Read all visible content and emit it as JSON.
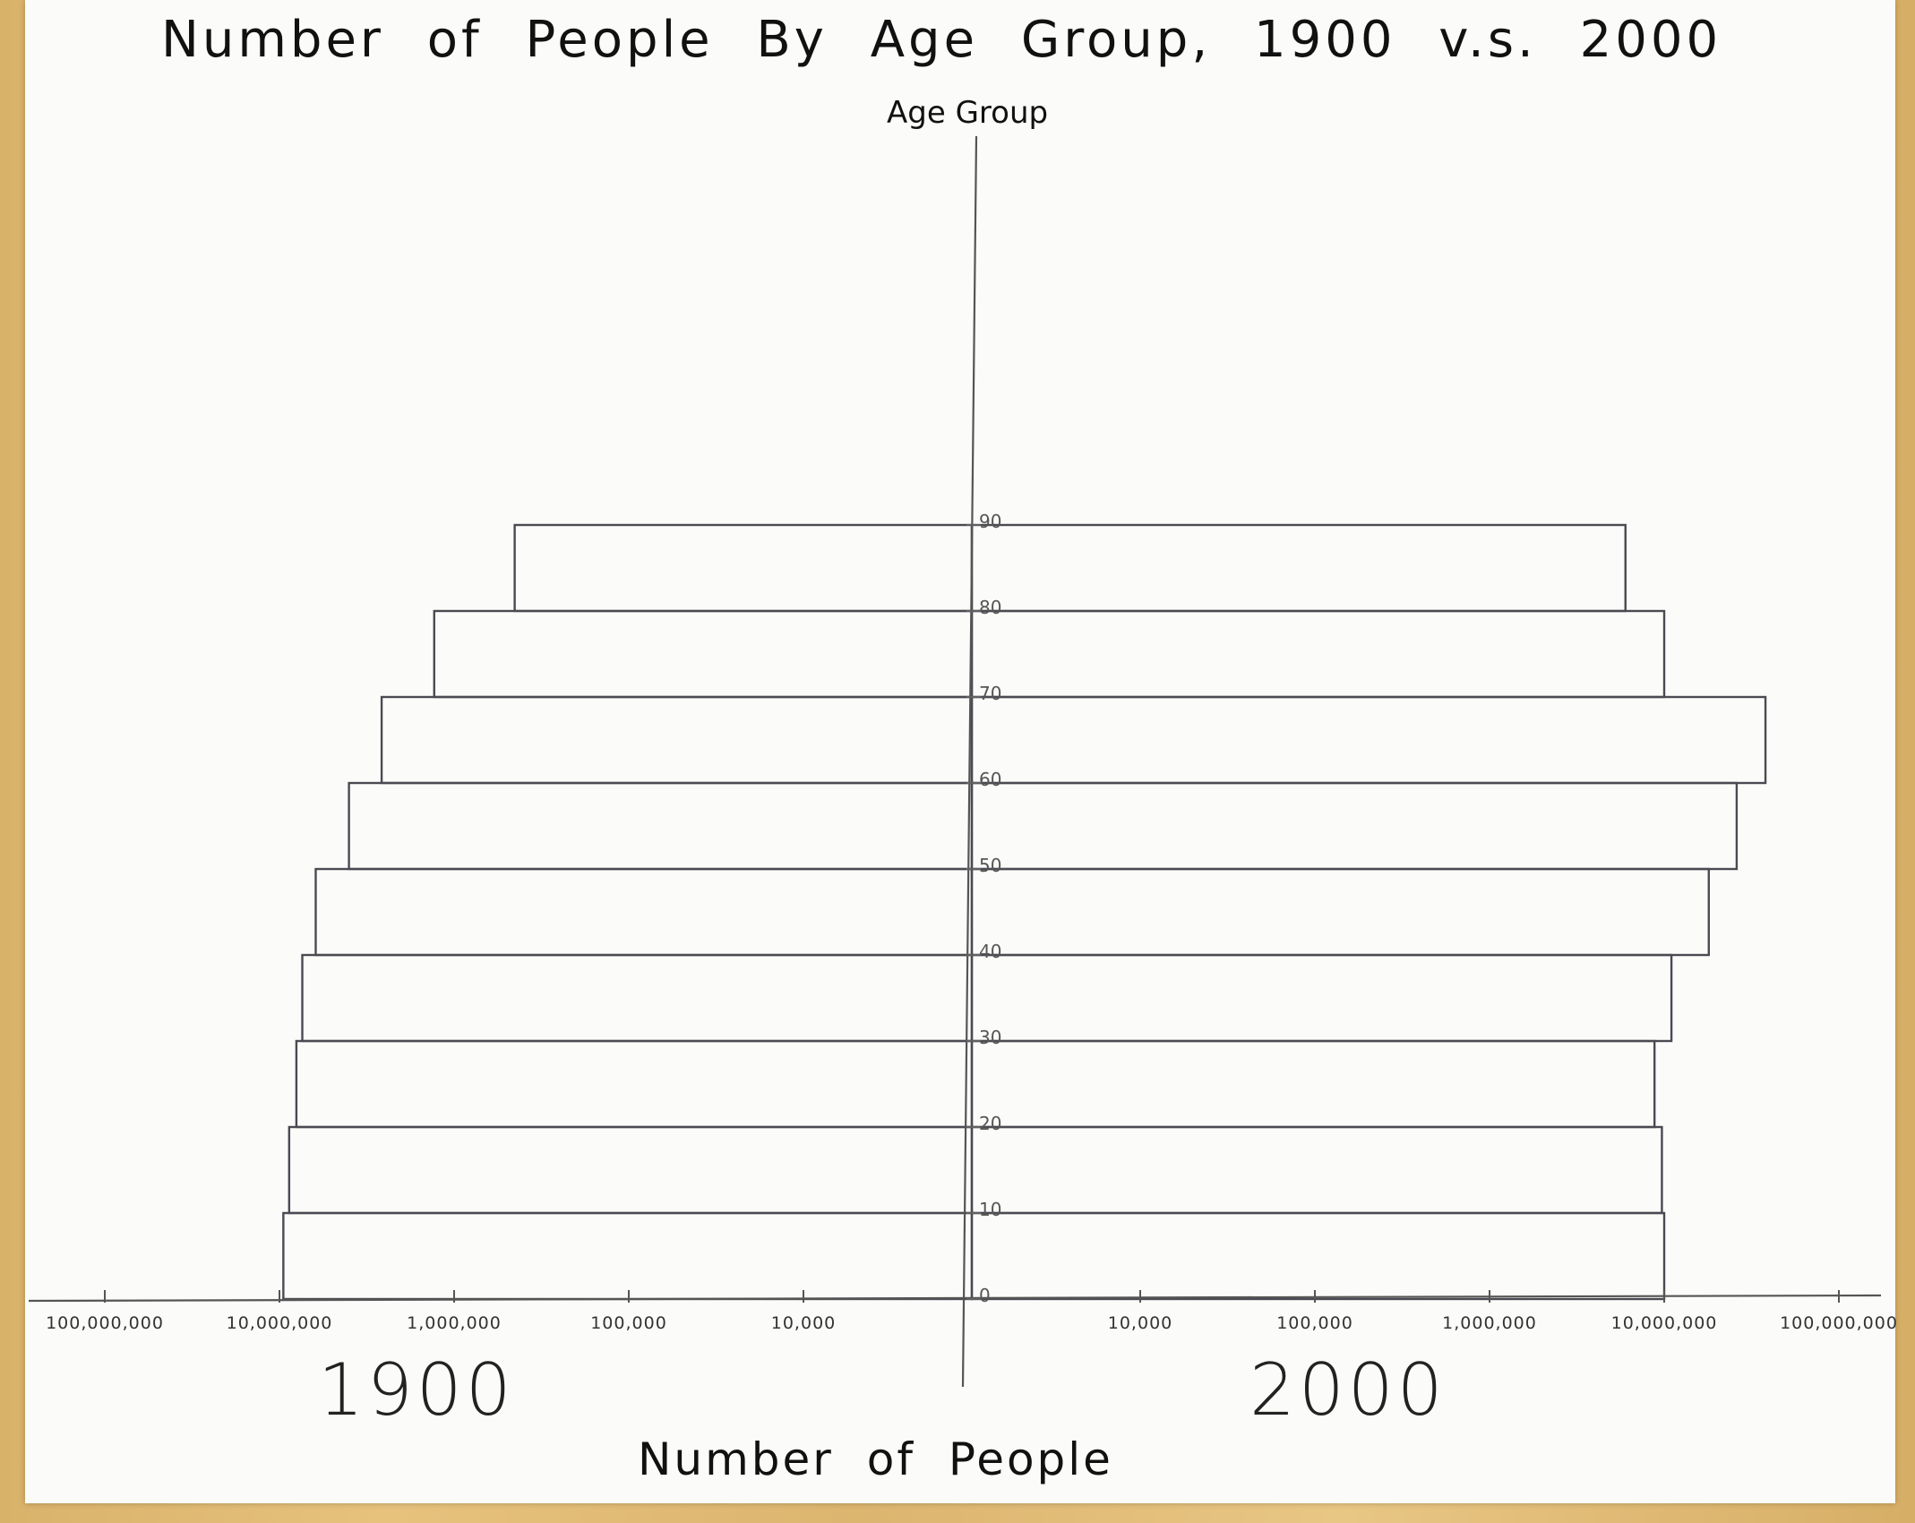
{
  "chart_data": {
    "type": "bar",
    "subtype": "population-pyramid",
    "title": "Number of People By Age Group, 1900 v.s. 2000",
    "ylabel": "Age Group",
    "xlabel": "Number of People",
    "x_scale": "log",
    "xlim": [
      1000,
      100000000
    ],
    "y_ticks": [
      0,
      10,
      20,
      30,
      40,
      50,
      60,
      70,
      80,
      90
    ],
    "x_ticks_left": [
      "100,000,000",
      "10,000,000",
      "1,000,000",
      "100,000",
      "10,000"
    ],
    "x_ticks_right": [
      "10,000",
      "100,000",
      "1,000,000",
      "10,000,000",
      "100,000,000"
    ],
    "tick_values": [
      100000000,
      10000000,
      1000000,
      100000,
      10000
    ],
    "categories": [
      "0",
      "10",
      "20",
      "30",
      "40",
      "50",
      "60",
      "70",
      "80"
    ],
    "series": [
      {
        "name": "1900",
        "values": [
          9500000,
          8800000,
          8000000,
          7400000,
          6200000,
          4000000,
          2600000,
          1300000,
          450000
        ]
      },
      {
        "name": "2000",
        "values": [
          10000000,
          9700000,
          8800000,
          11000000,
          18000000,
          26000000,
          38000000,
          10000000,
          6000000
        ]
      }
    ],
    "side_labels": [
      "1900",
      "2000"
    ],
    "legend": "none",
    "grid": false
  }
}
